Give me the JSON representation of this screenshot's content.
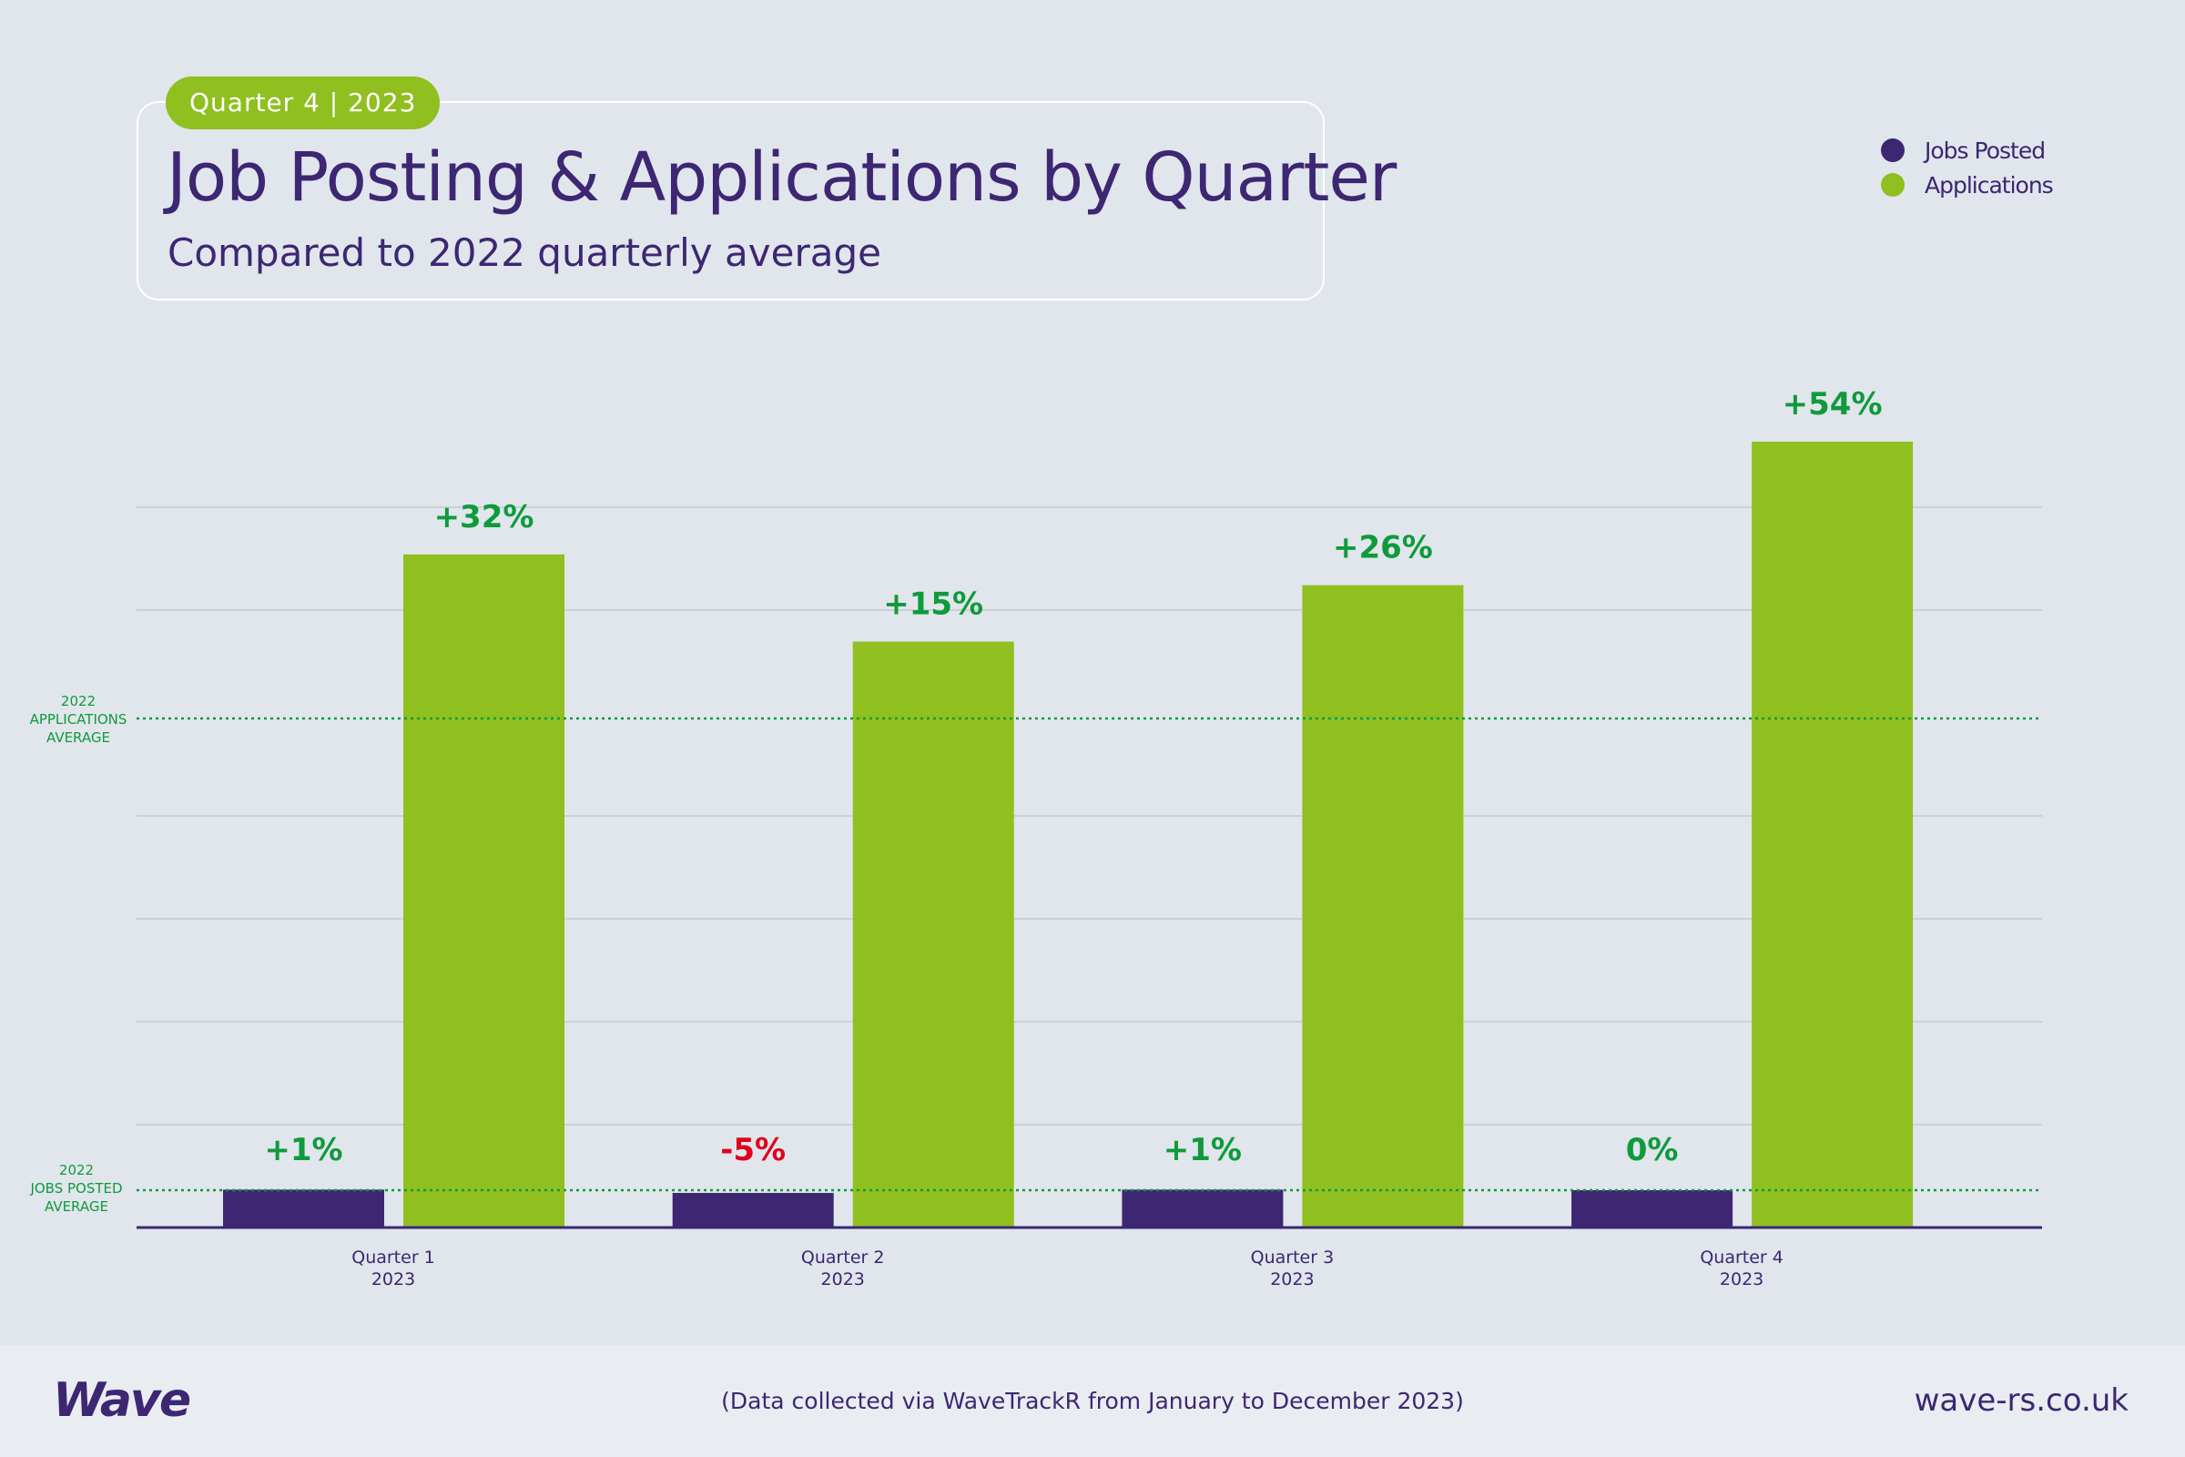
{
  "header": {
    "badge": "Quarter 4 | 2023",
    "title": "Job Posting & Applications by Quarter",
    "subtitle": "Compared to 2022 quarterly average"
  },
  "colors": {
    "jobs_posted": "#3d2672",
    "applications": "#90bf20",
    "positive_label": "#0f9a3c",
    "negative_label": "#e0001b",
    "reference_line": "#0f9a3c",
    "gridline": "#c4c9d0"
  },
  "chart_data": {
    "type": "bar",
    "categories": [
      [
        "Quarter 1",
        "2023"
      ],
      [
        "Quarter 2",
        "2023"
      ],
      [
        "Quarter 3",
        "2023"
      ],
      [
        "Quarter 4",
        "2023"
      ]
    ],
    "series": [
      {
        "name": "Jobs Posted",
        "values": [
          1,
          -5,
          1,
          0
        ],
        "labels": [
          "+1%",
          "-5%",
          "+1%",
          "0%"
        ],
        "baseline_label": [
          "2022",
          "JOBS POSTED",
          "AVERAGE"
        ]
      },
      {
        "name": "Applications",
        "values": [
          32,
          15,
          26,
          54
        ],
        "labels": [
          "+32%",
          "+15%",
          "+26%",
          "+54%"
        ],
        "baseline_label": [
          "2022",
          "APPLICATIONS",
          "AVERAGE"
        ]
      }
    ],
    "legend_position": "top-right",
    "grid": true,
    "y_axis_labels": false
  },
  "footer": {
    "logo": "Wave",
    "note": "(Data collected via WaveTrackR from January to December 2023)",
    "website": "wave-rs.co.uk"
  }
}
